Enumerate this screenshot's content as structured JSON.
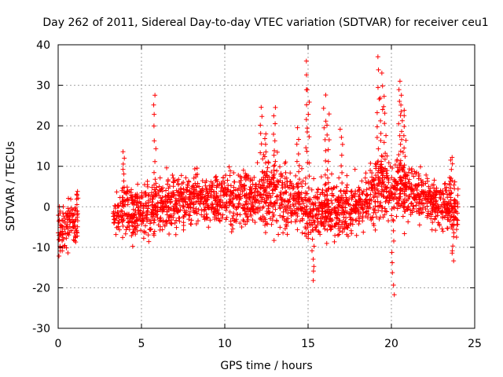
{
  "chart_data": {
    "type": "scatter",
    "title": "Day 262 of 2011, Sidereal Day-to-day VTEC variation (SDTVAR) for receiver ceu1",
    "xlabel": "GPS time / hours",
    "ylabel": "SDTVAR / TECUs",
    "xlim": [
      0,
      25
    ],
    "ylim": [
      -30,
      40
    ],
    "xticks": [
      0,
      5,
      10,
      15,
      20,
      25
    ],
    "yticks": [
      -30,
      -20,
      -10,
      0,
      10,
      20,
      30,
      40
    ],
    "xtick_labels": [
      "0",
      "5",
      "10",
      "15",
      "20",
      "25"
    ],
    "ytick_labels": [
      "-30",
      "-20",
      "-10",
      "0",
      "10",
      "20",
      "30",
      "40"
    ],
    "grid": true,
    "marker": "+",
    "color": "#ff0000",
    "data_gap_hours": [
      1.2,
      3.3
    ],
    "trend": [
      {
        "x": 0.0,
        "y": -6
      },
      {
        "x": 0.5,
        "y": -5
      },
      {
        "x": 1.2,
        "y": -3
      },
      {
        "x": 3.3,
        "y": -2
      },
      {
        "x": 5.0,
        "y": -1
      },
      {
        "x": 7.0,
        "y": 1
      },
      {
        "x": 9.0,
        "y": 2
      },
      {
        "x": 10.5,
        "y": 2
      },
      {
        "x": 12.0,
        "y": 2
      },
      {
        "x": 13.0,
        "y": 4
      },
      {
        "x": 14.0,
        "y": 2
      },
      {
        "x": 15.0,
        "y": -1
      },
      {
        "x": 16.0,
        "y": 0
      },
      {
        "x": 17.0,
        "y": -2
      },
      {
        "x": 18.0,
        "y": 0
      },
      {
        "x": 19.0,
        "y": 4
      },
      {
        "x": 20.0,
        "y": 5
      },
      {
        "x": 21.0,
        "y": 4
      },
      {
        "x": 22.0,
        "y": 3
      },
      {
        "x": 23.0,
        "y": 0
      },
      {
        "x": 24.0,
        "y": 0
      }
    ],
    "spikes": [
      {
        "x": 5.8,
        "y": 28
      },
      {
        "x": 12.2,
        "y": 25
      },
      {
        "x": 12.4,
        "y": 18
      },
      {
        "x": 13.0,
        "y": 24.5
      },
      {
        "x": 14.4,
        "y": 19
      },
      {
        "x": 14.9,
        "y": 36.5
      },
      {
        "x": 15.0,
        "y": 29
      },
      {
        "x": 16.0,
        "y": 27
      },
      {
        "x": 16.2,
        "y": 23
      },
      {
        "x": 17.0,
        "y": 19
      },
      {
        "x": 19.2,
        "y": 36.5
      },
      {
        "x": 19.4,
        "y": 33
      },
      {
        "x": 19.6,
        "y": 27
      },
      {
        "x": 20.5,
        "y": 31
      },
      {
        "x": 20.6,
        "y": 28
      },
      {
        "x": 20.8,
        "y": 24
      },
      {
        "x": 3.9,
        "y": 14
      },
      {
        "x": 20.1,
        "y": -21.5
      },
      {
        "x": 15.3,
        "y": -18
      },
      {
        "x": 23.6,
        "y": 12.5
      },
      {
        "x": 23.7,
        "y": -13
      }
    ]
  }
}
